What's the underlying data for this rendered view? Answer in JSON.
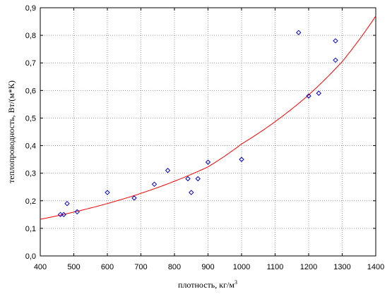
{
  "chart_data": {
    "type": "scatter",
    "xlabel": "плотность, кг/м",
    "xlabel_sup": "3",
    "ylabel": "теплопроводность, Вт/(м*К)",
    "xlim": [
      400,
      1400
    ],
    "ylim": [
      0.0,
      0.9
    ],
    "x_ticks": [
      "400",
      "500",
      "600",
      "700",
      "800",
      "900",
      "1000",
      "1100",
      "1200",
      "1300",
      "1400"
    ],
    "y_ticks": [
      "0,0",
      "0,1",
      "0,2",
      "0,3",
      "0,4",
      "0,5",
      "0,6",
      "0,7",
      "0,8",
      "0,9"
    ],
    "grid": true,
    "points": [
      {
        "x": 460,
        "y": 0.15
      },
      {
        "x": 470,
        "y": 0.15
      },
      {
        "x": 480,
        "y": 0.19
      },
      {
        "x": 510,
        "y": 0.16
      },
      {
        "x": 600,
        "y": 0.23
      },
      {
        "x": 680,
        "y": 0.21
      },
      {
        "x": 740,
        "y": 0.26
      },
      {
        "x": 780,
        "y": 0.31
      },
      {
        "x": 840,
        "y": 0.28
      },
      {
        "x": 850,
        "y": 0.23
      },
      {
        "x": 870,
        "y": 0.28
      },
      {
        "x": 900,
        "y": 0.34
      },
      {
        "x": 1000,
        "y": 0.35
      },
      {
        "x": 1170,
        "y": 0.81
      },
      {
        "x": 1200,
        "y": 0.58
      },
      {
        "x": 1230,
        "y": 0.59
      },
      {
        "x": 1280,
        "y": 0.78
      },
      {
        "x": 1280,
        "y": 0.71
      }
    ],
    "fit": {
      "type": "exponential",
      "x": [
        400,
        500,
        600,
        700,
        800,
        900,
        1000,
        1100,
        1200,
        1300,
        1400
      ],
      "y": [
        0.133,
        0.159,
        0.19,
        0.227,
        0.271,
        0.323,
        0.406,
        0.487,
        0.584,
        0.705,
        0.87
      ],
      "color": "#ff0000"
    },
    "point_color": "#0000cc"
  }
}
